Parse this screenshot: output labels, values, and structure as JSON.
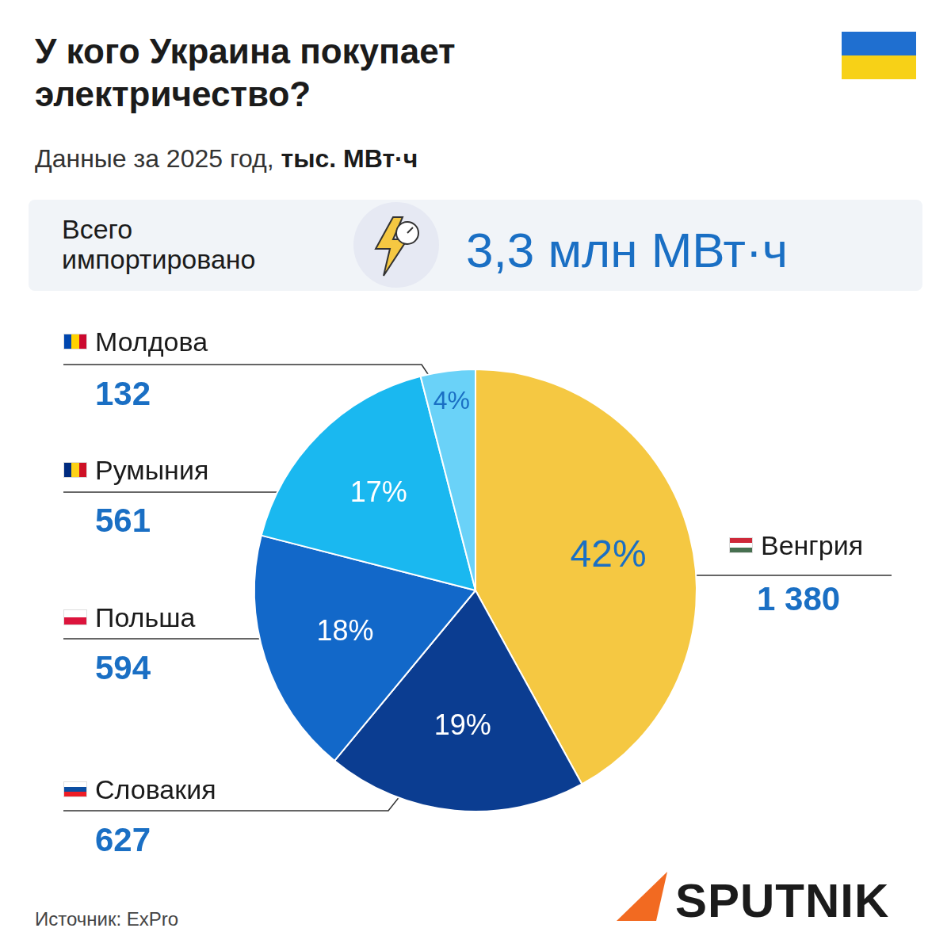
{
  "chart_data": {
    "type": "pie",
    "title": "У кого Украина покупает электричество?",
    "subtitle": "Данные за 2025 год,",
    "unit": "тыс. МВт·ч",
    "total_label": "Всего импортировано",
    "total": "3,3 млн МВт·ч",
    "categories": [
      "Венгрия",
      "Словакия",
      "Польша",
      "Румыния",
      "Молдова"
    ],
    "values": [
      42,
      19,
      18,
      17,
      4
    ],
    "value_labels": [
      "42%",
      "19%",
      "18%",
      "17%",
      "4%"
    ],
    "amounts": [
      1380,
      627,
      594,
      561,
      132
    ],
    "amount_labels": [
      "1 380",
      "627",
      "594",
      "561",
      "132"
    ],
    "colors": [
      "#f5c842",
      "#0b3d91",
      "#1268c9",
      "#1ab8f0",
      "#6ad2f8"
    ],
    "data_labels": true,
    "source": "Источник: ExPro",
    "logo": "SPUTNIK"
  }
}
